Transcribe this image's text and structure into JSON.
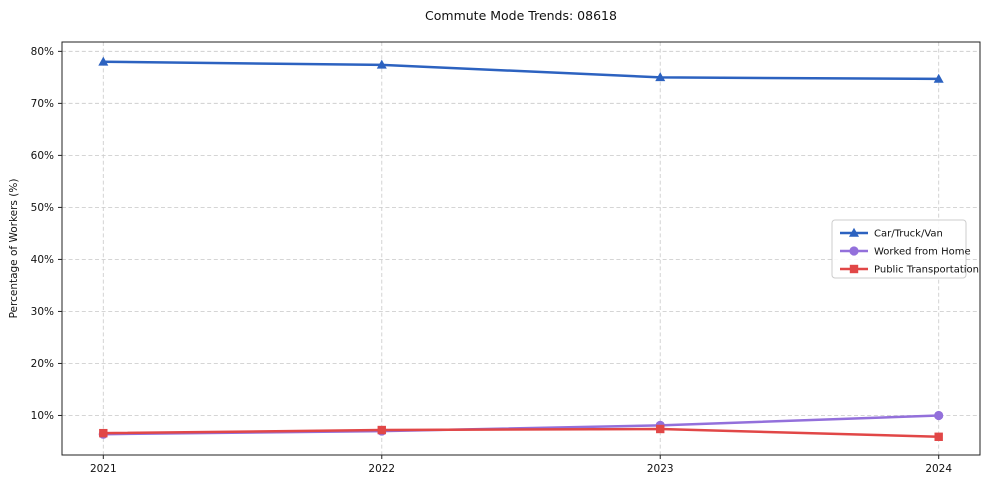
{
  "title": "Commute Mode Trends: 08618",
  "chart_data": {
    "type": "line",
    "title": "Commute Mode Trends: 08618",
    "xlabel": "",
    "ylabel": "Percentage of Workers (%)",
    "categories": [
      "2021",
      "2022",
      "2023",
      "2024"
    ],
    "series": [
      {
        "name": "Car/Truck/Van",
        "marker": "triangle",
        "color": "#2c62c0",
        "values": [
          78.0,
          77.4,
          75.0,
          74.7
        ]
      },
      {
        "name": "Worked from Home",
        "marker": "circle",
        "color": "#9370db",
        "values": [
          6.4,
          7.0,
          8.1,
          10.0
        ]
      },
      {
        "name": "Public Transportation",
        "marker": "square",
        "color": "#e14747",
        "values": [
          6.6,
          7.2,
          7.4,
          5.9
        ]
      }
    ],
    "ylim": [
      2.4,
      81.8
    ],
    "yticks": [
      10,
      20,
      30,
      40,
      50,
      60,
      70,
      80
    ],
    "ytick_suffix": "%",
    "grid": true,
    "grid_style": "dashed",
    "grid_color": "#cfcfcf",
    "frame_color": "#222222",
    "legend_position": "center-right"
  }
}
